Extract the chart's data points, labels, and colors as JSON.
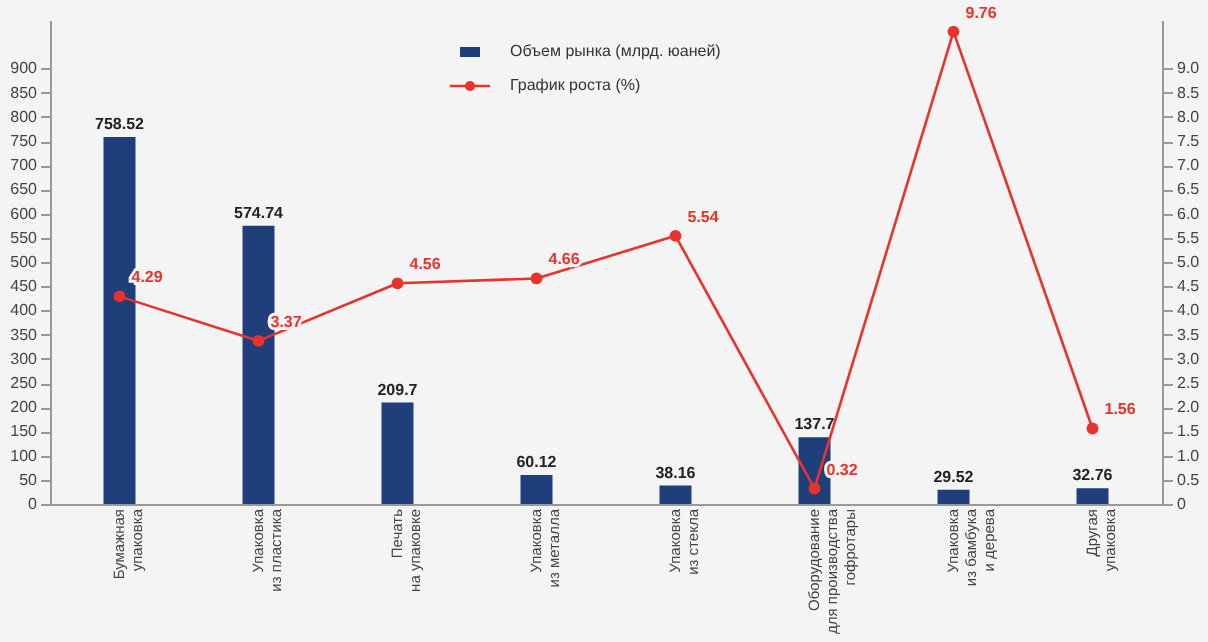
{
  "chart_data": {
    "type": "bar",
    "categories": [
      "Бумажная\nупаковка",
      "Упаковка\nиз пластика",
      "Печать\nна упаковке",
      "Упаковка\nиз металла",
      "Упаковка\nиз стекла",
      "Оборудование\nдля производства\nгофротары",
      "Упаковка\nиз бамбука\nи дерева",
      "Другая\nупаковка"
    ],
    "series": [
      {
        "name": "Объем рынка (млрд. юаней)",
        "color": "#1f3f7a",
        "values": [
          758.52,
          574.74,
          209.7,
          60.12,
          38.16,
          137.7,
          29.52,
          32.76
        ]
      },
      {
        "name": "График роста (%)",
        "color": "#e8322b",
        "type": "line",
        "axis": "y2",
        "values": [
          4.29,
          3.37,
          4.56,
          4.66,
          5.54,
          0.32,
          9.76,
          1.56
        ]
      }
    ],
    "ylim": [
      0,
      1000
    ],
    "yticks": [
      0,
      50,
      100,
      150,
      200,
      250,
      300,
      350,
      400,
      450,
      500,
      550,
      600,
      650,
      700,
      750,
      800,
      850,
      900
    ],
    "y2lim": [
      0,
      10
    ],
    "y2ticks": [
      0,
      0.5,
      {
        "value": 1,
        "label": "1.0"
      },
      1.5,
      {
        "value": 2,
        "label": "2.0"
      },
      2.5,
      {
        "value": 3,
        "label": "3.0"
      },
      3.5,
      {
        "value": 4,
        "label": "4.0"
      },
      4.5,
      {
        "value": 5,
        "label": "5.0"
      },
      5.5,
      {
        "value": 6,
        "label": "6.0"
      },
      6.5,
      {
        "value": 7,
        "label": "7.0"
      },
      7.5,
      {
        "value": 8,
        "label": "8.0"
      },
      8.5,
      {
        "value": 9,
        "label": "9.0"
      }
    ],
    "data_labels": true,
    "legend": "top",
    "grid": false,
    "marker": "circle",
    "line_style": "solid"
  }
}
